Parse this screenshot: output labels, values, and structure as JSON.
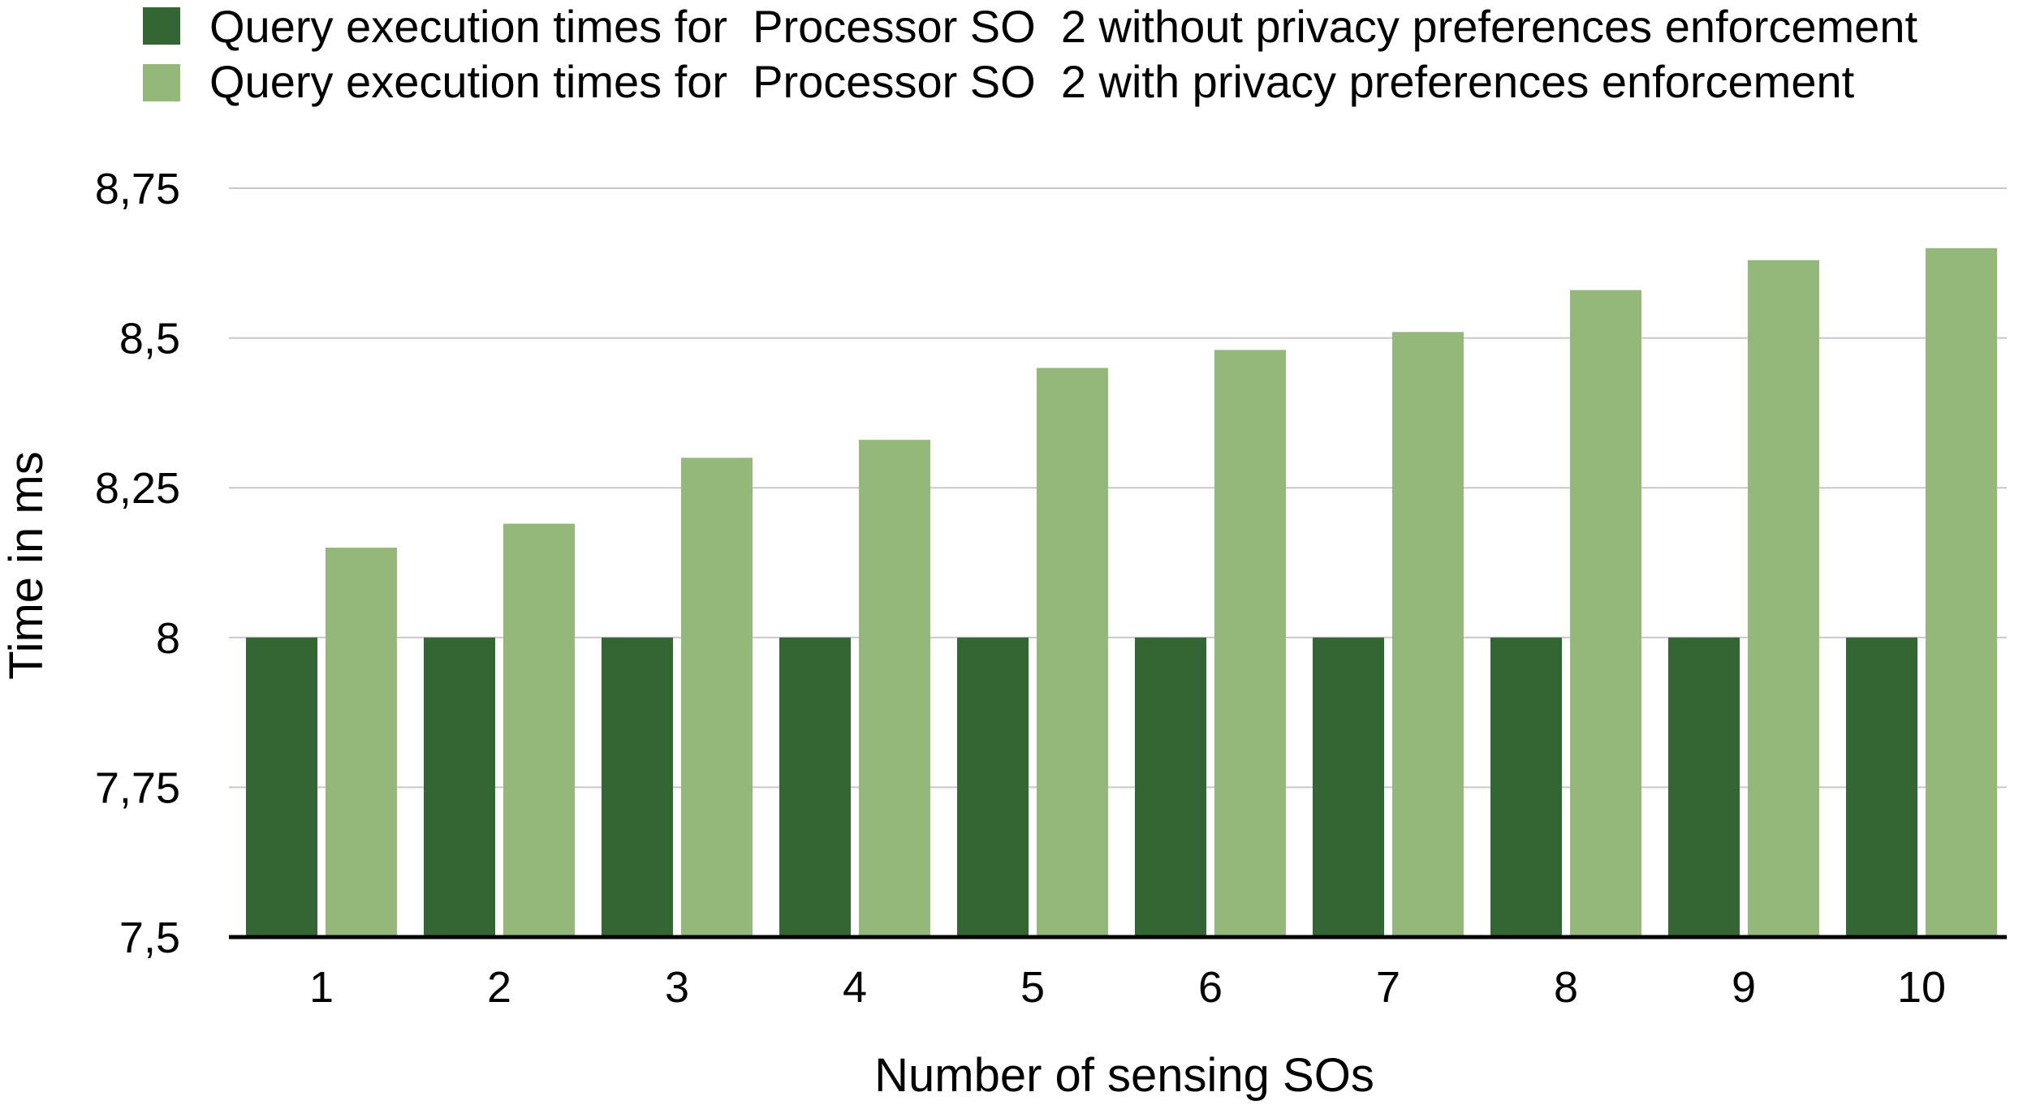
{
  "chart_data": {
    "type": "bar",
    "categories": [
      "1",
      "2",
      "3",
      "4",
      "5",
      "6",
      "7",
      "8",
      "9",
      "10"
    ],
    "series": [
      {
        "name": "Query execution times for  Processor SO  2 without privacy preferences enforcement",
        "color": "#336633",
        "values": [
          8,
          8,
          8,
          8,
          8,
          8,
          8,
          8,
          8,
          8
        ]
      },
      {
        "name": "Query execution times for  Processor SO  2 with privacy preferences enforcement",
        "color": "#94b87a",
        "values": [
          8.15,
          8.19,
          8.3,
          8.33,
          8.45,
          8.48,
          8.51,
          8.58,
          8.63,
          8.65
        ]
      }
    ],
    "xlabel": "Number of sensing SOs",
    "ylabel": "Time in ms",
    "ylim": [
      7.5,
      8.75
    ],
    "yticks": [
      7.5,
      7.75,
      8,
      8.25,
      8.5,
      8.75
    ],
    "ytick_labels": [
      "7,5",
      "7,75",
      "8",
      "8,25",
      "8,5",
      "8,75"
    ],
    "grid": true,
    "legend_position": "top"
  }
}
